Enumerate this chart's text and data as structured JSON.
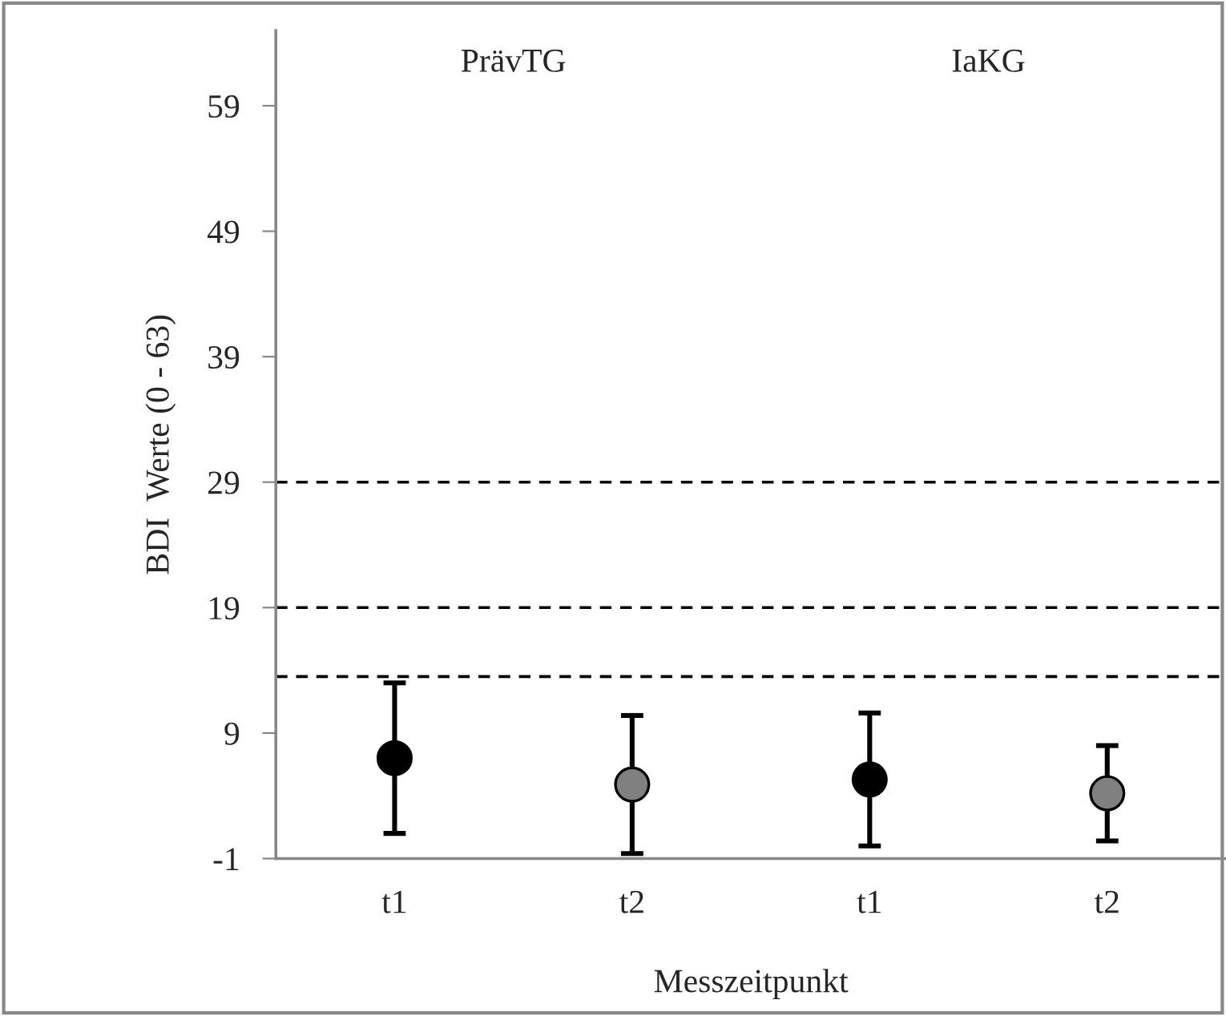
{
  "chart_data": {
    "type": "scatter",
    "xlabel": "Messzeitpunkt",
    "ylabel": "BDI  Werte (0 - 63)",
    "categories": [
      "t1",
      "t2",
      "t1",
      "t2"
    ],
    "values": [
      7.0,
      4.9,
      5.3,
      4.2
    ],
    "errors": [
      6.0,
      5.5,
      5.3,
      3.8
    ],
    "colors": [
      "#000000",
      "#808080",
      "#000000",
      "#808080"
    ],
    "marker": "circle",
    "ylim": [
      -1,
      65
    ],
    "yticks": [
      -1,
      9,
      19,
      29,
      39,
      49,
      59
    ],
    "ref_lines": [
      {
        "axis": "y",
        "value": 29,
        "line_style": "dashed",
        "color": "#000000"
      },
      {
        "axis": "y",
        "value": 19,
        "line_style": "dashed",
        "color": "#000000"
      },
      {
        "axis": "y",
        "value": 13.5,
        "line_style": "dashed",
        "color": "#000000"
      }
    ],
    "annotations": [
      "PrävTG",
      "IaKG"
    ],
    "grid": false,
    "legend": false
  }
}
